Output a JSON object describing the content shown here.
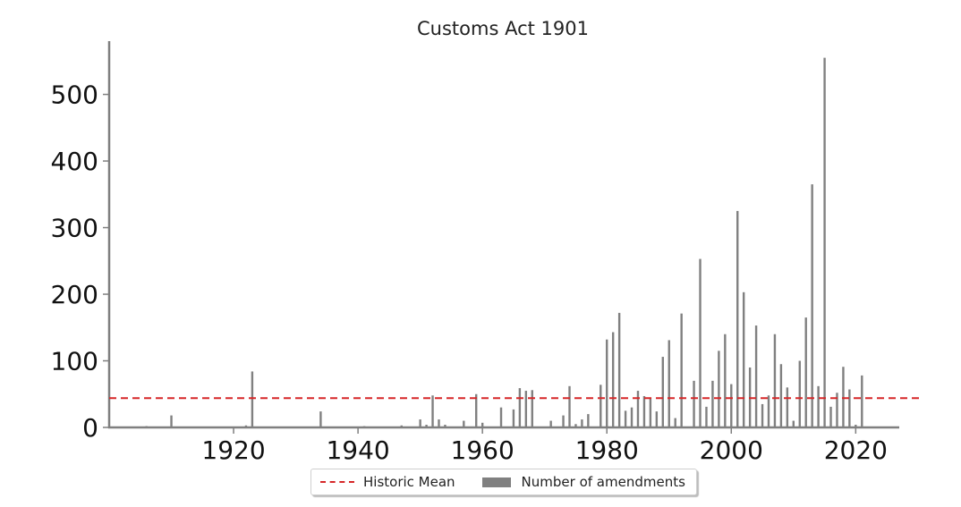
{
  "chart_data": {
    "type": "bar",
    "title": "Customs Act 1901",
    "xlabel": "",
    "ylabel": "",
    "xlim": [
      1900,
      2027
    ],
    "ylim": [
      0,
      580
    ],
    "x_ticks": [
      1920,
      1940,
      1960,
      1980,
      2000,
      2020
    ],
    "y_ticks": [
      0,
      100,
      200,
      300,
      400,
      500
    ],
    "grid": false,
    "legend_position": "bottom-center",
    "mean": {
      "name": "Historic Mean",
      "value": 44,
      "color": "#d62728"
    },
    "series": [
      {
        "name": "Number of amendments",
        "color": "#808080",
        "x": [
          1906,
          1910,
          1922,
          1923,
          1934,
          1941,
          1947,
          1950,
          1951,
          1952,
          1953,
          1954,
          1957,
          1959,
          1960,
          1963,
          1965,
          1966,
          1967,
          1968,
          1971,
          1973,
          1974,
          1975,
          1976,
          1977,
          1979,
          1980,
          1981,
          1982,
          1983,
          1984,
          1985,
          1986,
          1987,
          1988,
          1989,
          1990,
          1991,
          1992,
          1994,
          1995,
          1996,
          1997,
          1998,
          1999,
          2000,
          2001,
          2002,
          2003,
          2004,
          2005,
          2006,
          2007,
          2008,
          2009,
          2010,
          2011,
          2012,
          2013,
          2014,
          2015,
          2016,
          2017,
          2018,
          2019,
          2020,
          2021
        ],
        "values": [
          2,
          18,
          3,
          84,
          24,
          2,
          3,
          12,
          4,
          48,
          12,
          4,
          10,
          50,
          7,
          30,
          27,
          59,
          55,
          56,
          10,
          18,
          62,
          5,
          12,
          20,
          64,
          132,
          143,
          172,
          25,
          30,
          55,
          47,
          45,
          24,
          106,
          131,
          14,
          171,
          70,
          253,
          31,
          70,
          115,
          140,
          65,
          325,
          203,
          90,
          153,
          35,
          48,
          140,
          95,
          60,
          10,
          100,
          165,
          365,
          62,
          555,
          31,
          52,
          91,
          57,
          4,
          78
        ]
      }
    ]
  }
}
